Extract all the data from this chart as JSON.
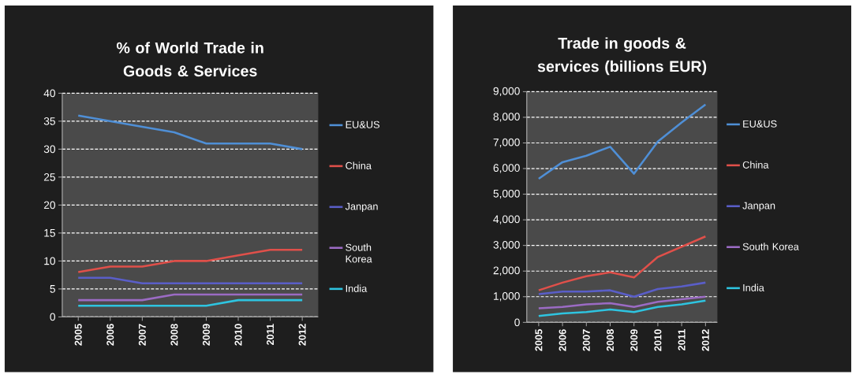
{
  "chart_data": [
    {
      "type": "line",
      "title": "% of World Trade in Goods & Services",
      "categories": [
        "2005",
        "2006",
        "2007",
        "2008",
        "2009",
        "2010",
        "2011",
        "2012"
      ],
      "series": [
        {
          "name": "EU&US",
          "color": "#4f8fd6",
          "values": [
            36,
            35,
            34,
            33,
            31,
            31,
            31,
            30
          ]
        },
        {
          "name": "China",
          "color": "#e0504a",
          "values": [
            8,
            9,
            9,
            10,
            10,
            11,
            12,
            12
          ]
        },
        {
          "name": "Janpan",
          "color": "#5a5ec8",
          "values": [
            7,
            7,
            6,
            6,
            6,
            6,
            6,
            6
          ]
        },
        {
          "name": "South Korea",
          "color": "#9b6bc4",
          "values": [
            3,
            3,
            3,
            4,
            4,
            4,
            4,
            4
          ]
        },
        {
          "name": "India",
          "color": "#2ec4e0",
          "values": [
            2,
            2,
            2,
            2,
            2,
            3,
            3,
            3
          ]
        }
      ],
      "ylim": [
        0,
        40
      ],
      "yticks": [
        0,
        5,
        10,
        15,
        20,
        25,
        30,
        35,
        40
      ],
      "grid": "y",
      "legend": "right"
    },
    {
      "type": "line",
      "title": "Trade in goods & services (billions EUR)",
      "categories": [
        "2005",
        "2006",
        "2007",
        "2008",
        "2009",
        "2010",
        "2011",
        "2012"
      ],
      "series": [
        {
          "name": "EU&US",
          "color": "#4f8fd6",
          "values": [
            5600,
            6250,
            6500,
            6850,
            5800,
            7050,
            7800,
            8500
          ]
        },
        {
          "name": "China",
          "color": "#e0504a",
          "values": [
            1250,
            1550,
            1800,
            1950,
            1750,
            2550,
            2950,
            3350
          ]
        },
        {
          "name": "Janpan",
          "color": "#5a5ec8",
          "values": [
            1100,
            1200,
            1200,
            1250,
            1000,
            1300,
            1400,
            1550
          ]
        },
        {
          "name": "South Korea",
          "color": "#9b6bc4",
          "values": [
            550,
            600,
            700,
            750,
            600,
            800,
            900,
            1000
          ]
        },
        {
          "name": "India",
          "color": "#2ec4e0",
          "values": [
            250,
            350,
            400,
            500,
            400,
            600,
            700,
            850
          ]
        }
      ],
      "ylim": [
        0,
        9000
      ],
      "yticks": [
        0,
        {
          "value": 1000,
          "label": "1,000"
        },
        {
          "value": 2000,
          "label": "2,000"
        },
        {
          "value": 3000,
          "label": "3,000"
        },
        {
          "value": 4000,
          "label": "4,000"
        },
        {
          "value": 5000,
          "label": "5,000"
        },
        {
          "value": 6000,
          "label": "6,000"
        },
        {
          "value": 7000,
          "label": "7,000"
        },
        {
          "value": 8000,
          "label": "8,000"
        },
        {
          "value": 9000,
          "label": "9,000"
        }
      ],
      "grid": "y",
      "legend": "right"
    }
  ]
}
